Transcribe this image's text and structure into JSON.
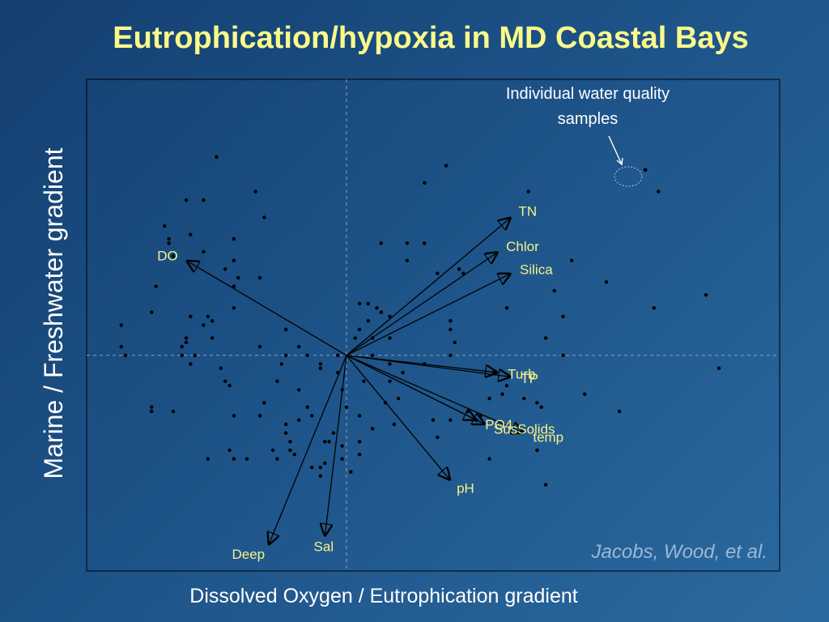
{
  "title": "Eutrophication/hypoxia in MD Coastal Bays",
  "colors": {
    "title": "#fafa8a",
    "arrow_label": "#f6f28a",
    "axis_text": "#ffffff",
    "credit": "#9db8d6"
  },
  "chart_data": {
    "type": "scatter",
    "xlabel": "Dissolved Oxygen / Eutrophication gradient",
    "ylabel": "Marine / Freshwater gradient",
    "xlim": [
      -3.0,
      5.0
    ],
    "ylim": [
      -2.5,
      3.2
    ],
    "grid": false,
    "legend": "none",
    "points": [
      [
        -1.5,
        2.3
      ],
      [
        -1.05,
        1.9
      ],
      [
        -1.65,
        1.8
      ],
      [
        -1.85,
        1.8
      ],
      [
        -2.1,
        1.5
      ],
      [
        -2.05,
        1.35
      ],
      [
        -1.8,
        1.4
      ],
      [
        -1.3,
        1.35
      ],
      [
        -2.05,
        1.3
      ],
      [
        -1.3,
        1.1
      ],
      [
        -1.65,
        1.2
      ],
      [
        -0.95,
        1.6
      ],
      [
        -2.0,
        1.15
      ],
      [
        -1.4,
        1.0
      ],
      [
        -1.25,
        0.9
      ],
      [
        -1.3,
        0.8
      ],
      [
        -2.2,
        0.8
      ],
      [
        -1.3,
        0.55
      ],
      [
        -2.25,
        0.5
      ],
      [
        -1.6,
        0.45
      ],
      [
        -1.8,
        0.45
      ],
      [
        -1.55,
        0.4
      ],
      [
        -1.65,
        0.35
      ],
      [
        -2.6,
        0.35
      ],
      [
        -2.6,
        0.1
      ],
      [
        -1.55,
        0.2
      ],
      [
        -1.85,
        0.2
      ],
      [
        -1.85,
        0.15
      ],
      [
        -1.9,
        0.1
      ],
      [
        -2.55,
        0.0
      ],
      [
        -1.75,
        0.0
      ],
      [
        -1.9,
        0.0
      ],
      [
        -1.45,
        -0.15
      ],
      [
        -1.4,
        -0.3
      ],
      [
        -1.0,
        0.9
      ],
      [
        -1.0,
        0.1
      ],
      [
        -0.7,
        0.0
      ],
      [
        -0.7,
        0.3
      ],
      [
        -0.55,
        0.1
      ],
      [
        -0.75,
        -0.1
      ],
      [
        -0.45,
        0.0
      ],
      [
        -0.3,
        -0.15
      ],
      [
        -0.3,
        -0.1
      ],
      [
        -0.1,
        0.0
      ],
      [
        -1.8,
        -0.1
      ],
      [
        -1.35,
        -0.35
      ],
      [
        -0.8,
        -0.3
      ],
      [
        -0.55,
        -0.4
      ],
      [
        -0.1,
        -0.2
      ],
      [
        -0.05,
        -0.4
      ],
      [
        0.0,
        -0.6
      ],
      [
        -0.15,
        -0.9
      ],
      [
        -0.4,
        -0.7
      ],
      [
        -0.7,
        -0.8
      ],
      [
        -0.95,
        -0.55
      ],
      [
        -2.25,
        -0.6
      ],
      [
        -2.25,
        -0.65
      ],
      [
        -2.0,
        -0.65
      ],
      [
        -1.3,
        -0.7
      ],
      [
        -1.0,
        -0.7
      ],
      [
        -0.45,
        -0.6
      ],
      [
        -0.55,
        -0.75
      ],
      [
        -0.65,
        -1.0
      ],
      [
        -0.7,
        -0.9
      ],
      [
        -0.8,
        -1.2
      ],
      [
        -0.85,
        -1.1
      ],
      [
        -0.65,
        -1.1
      ],
      [
        -0.6,
        -1.15
      ],
      [
        -1.35,
        -1.1
      ],
      [
        -1.3,
        -1.2
      ],
      [
        -1.6,
        -1.2
      ],
      [
        -1.15,
        -1.2
      ],
      [
        -0.2,
        -1.0
      ],
      [
        -0.25,
        -1.0
      ],
      [
        -0.25,
        -1.25
      ],
      [
        -0.4,
        -1.3
      ],
      [
        -0.05,
        -1.05
      ],
      [
        -0.05,
        -1.2
      ],
      [
        0.05,
        -1.35
      ],
      [
        -0.3,
        -1.4
      ],
      [
        -0.3,
        -1.3
      ],
      [
        0.15,
        -1.0
      ],
      [
        0.15,
        -1.15
      ],
      [
        0.15,
        -0.7
      ],
      [
        0.45,
        -0.55
      ],
      [
        0.5,
        -0.3
      ],
      [
        0.3,
        -0.85
      ],
      [
        0.55,
        -0.8
      ],
      [
        0.2,
        -0.3
      ],
      [
        0.3,
        0.0
      ],
      [
        0.5,
        -0.1
      ],
      [
        0.6,
        -0.5
      ],
      [
        0.65,
        -0.2
      ],
      [
        0.9,
        -0.1
      ],
      [
        1.0,
        -0.75
      ],
      [
        1.05,
        -0.95
      ],
      [
        1.2,
        0.0
      ],
      [
        1.25,
        0.15
      ],
      [
        1.2,
        -0.75
      ],
      [
        1.4,
        -0.65
      ],
      [
        1.5,
        -0.75
      ],
      [
        1.55,
        -0.7
      ],
      [
        1.65,
        -0.5
      ],
      [
        1.8,
        -0.45
      ],
      [
        2.05,
        -0.5
      ],
      [
        2.2,
        -0.55
      ],
      [
        1.7,
        -0.2
      ],
      [
        1.85,
        -0.35
      ],
      [
        2.25,
        -0.6
      ],
      [
        2.75,
        -0.45
      ],
      [
        3.15,
        -0.65
      ],
      [
        4.3,
        -0.15
      ],
      [
        2.2,
        -1.1
      ],
      [
        1.65,
        -1.2
      ],
      [
        2.3,
        -1.5
      ],
      [
        0.4,
        1.3
      ],
      [
        0.7,
        1.1
      ],
      [
        0.9,
        1.3
      ],
      [
        0.7,
        1.3
      ],
      [
        1.3,
        1.0
      ],
      [
        1.35,
        0.95
      ],
      [
        1.05,
        0.95
      ],
      [
        0.15,
        0.6
      ],
      [
        0.25,
        0.6
      ],
      [
        0.35,
        0.55
      ],
      [
        0.4,
        0.5
      ],
      [
        0.5,
        0.45
      ],
      [
        0.5,
        0.2
      ],
      [
        0.15,
        0.3
      ],
      [
        0.3,
        0.2
      ],
      [
        0.1,
        0.2
      ],
      [
        0.25,
        0.4
      ],
      [
        1.2,
        0.4
      ],
      [
        1.2,
        0.3
      ],
      [
        1.85,
        0.55
      ],
      [
        2.3,
        0.2
      ],
      [
        2.5,
        0.45
      ],
      [
        2.4,
        0.75
      ],
      [
        2.5,
        0.0
      ],
      [
        2.6,
        1.1
      ],
      [
        3.0,
        0.85
      ],
      [
        3.55,
        0.55
      ],
      [
        4.15,
        0.7
      ],
      [
        2.1,
        1.9
      ],
      [
        1.15,
        2.2
      ],
      [
        0.9,
        2.0
      ],
      [
        3.6,
        1.9
      ]
    ],
    "highlight_points": [
      [
        3.45,
        2.15
      ]
    ],
    "vectors": [
      {
        "name": "TN",
        "x": 1.9,
        "y": 1.6
      },
      {
        "name": "Chlor",
        "x": 1.75,
        "y": 1.2
      },
      {
        "name": "Silica",
        "x": 1.9,
        "y": 0.95
      },
      {
        "name": "Turb",
        "x": 1.75,
        "y": -0.2
      },
      {
        "name": "TP",
        "x": 1.9,
        "y": -0.25
      },
      {
        "name": "PO4",
        "x": 1.5,
        "y": -0.75
      },
      {
        "name": "temp",
        "x": 2.05,
        "y": -0.9
      },
      {
        "name": "SusSolids",
        "x": 1.6,
        "y": -0.8
      },
      {
        "name": "pH",
        "x": 1.2,
        "y": -1.45
      },
      {
        "name": "DO",
        "x": -1.85,
        "y": 1.1
      },
      {
        "name": "Deep",
        "x": -0.9,
        "y": -2.2
      },
      {
        "name": "Sal",
        "x": -0.25,
        "y": -2.1
      }
    ]
  },
  "annotation": {
    "line1": "Individual water quality",
    "line2": "samples"
  },
  "credit": "Jacobs, Wood, et al."
}
